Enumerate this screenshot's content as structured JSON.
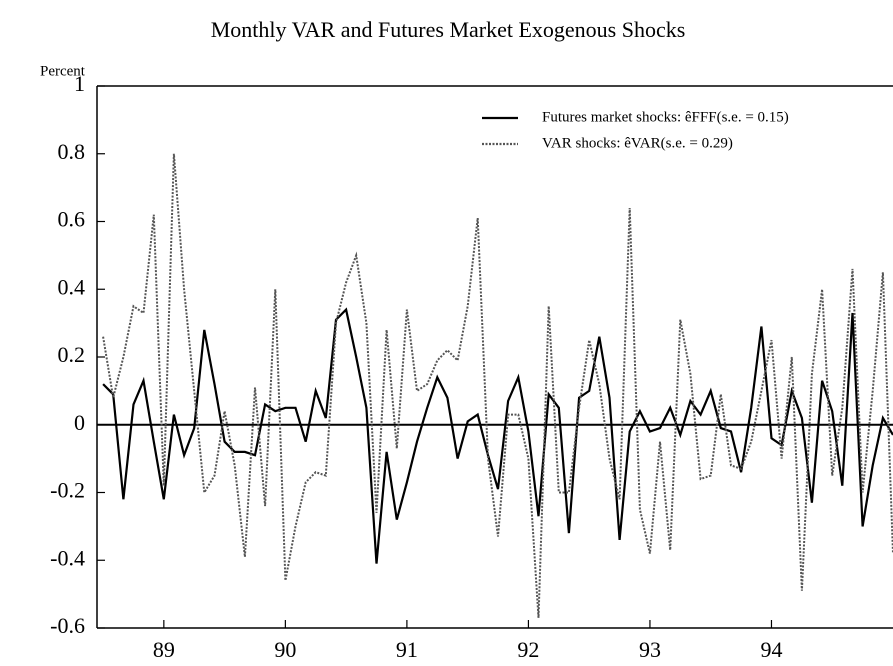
{
  "chart_data": {
    "type": "line",
    "title": "Monthly VAR and Futures Market Exogenous Shocks",
    "y_label": "Percent",
    "x": [
      1988.5,
      1988.583,
      1988.667,
      1988.75,
      1988.833,
      1988.917,
      1989,
      1989.083,
      1989.167,
      1989.25,
      1989.333,
      1989.417,
      1989.5,
      1989.583,
      1989.667,
      1989.75,
      1989.833,
      1989.917,
      1990,
      1990.083,
      1990.167,
      1990.25,
      1990.333,
      1990.417,
      1990.5,
      1990.583,
      1990.667,
      1990.75,
      1990.833,
      1990.917,
      1991,
      1991.083,
      1991.167,
      1991.25,
      1991.333,
      1991.417,
      1991.5,
      1991.583,
      1991.667,
      1991.75,
      1991.833,
      1991.917,
      1992,
      1992.083,
      1992.167,
      1992.25,
      1992.333,
      1992.417,
      1992.5,
      1992.583,
      1992.667,
      1992.75,
      1992.833,
      1992.917,
      1993,
      1993.083,
      1993.167,
      1993.25,
      1993.333,
      1993.417,
      1993.5,
      1993.583,
      1993.667,
      1993.75,
      1993.833,
      1993.917,
      1994,
      1994.083,
      1994.167,
      1994.25,
      1994.333,
      1994.417,
      1994.5,
      1994.583,
      1994.667,
      1994.75,
      1994.833,
      1994.917,
      1995
    ],
    "series": [
      {
        "name": "Futures market shocks: êFFF(s.e. = 0.15)",
        "color": "#000000",
        "line_style": "solid",
        "values": [
          0.12,
          0.09,
          -0.22,
          0.06,
          0.13,
          -0.05,
          -0.22,
          0.03,
          -0.09,
          -0.01,
          0.28,
          0.12,
          -0.05,
          -0.08,
          -0.08,
          -0.09,
          0.06,
          0.04,
          0.05,
          0.05,
          -0.05,
          0.1,
          0.02,
          0.31,
          0.34,
          0.2,
          0.05,
          -0.41,
          -0.08,
          -0.28,
          -0.17,
          -0.05,
          0.05,
          0.14,
          0.08,
          -0.1,
          0.01,
          0.03,
          -0.09,
          -0.19,
          0.07,
          0.14,
          -0.02,
          -0.27,
          0.09,
          0.05,
          -0.32,
          0.08,
          0.1,
          0.26,
          0.08,
          -0.34,
          -0.02,
          0.04,
          -0.02,
          -0.01,
          0.05,
          -0.03,
          0.07,
          0.03,
          0.1,
          -0.01,
          -0.02,
          -0.14,
          0.05,
          0.29,
          -0.04,
          -0.06,
          0.1,
          0.02,
          -0.23,
          0.13,
          0.04,
          -0.18,
          0.33,
          -0.3,
          -0.12,
          0.02,
          -0.03
        ]
      },
      {
        "name": "VAR shocks: êVAR(s.e. = 0.29)",
        "color": "#555555",
        "line_style": "dotted",
        "values": [
          0.26,
          0.08,
          0.2,
          0.35,
          0.33,
          0.62,
          -0.18,
          0.8,
          0.4,
          0.1,
          -0.2,
          -0.15,
          0.04,
          -0.12,
          -0.39,
          0.11,
          -0.24,
          0.4,
          -0.46,
          -0.3,
          -0.17,
          -0.14,
          -0.15,
          0.3,
          0.42,
          0.5,
          0.3,
          -0.26,
          0.28,
          -0.07,
          0.34,
          0.1,
          0.12,
          0.19,
          0.22,
          0.19,
          0.35,
          0.61,
          -0.1,
          -0.33,
          0.03,
          0.03,
          -0.1,
          -0.57,
          0.35,
          -0.2,
          -0.2,
          0.05,
          0.25,
          0.12,
          -0.1,
          -0.22,
          0.64,
          -0.25,
          -0.38,
          -0.05,
          -0.37,
          0.31,
          0.15,
          -0.16,
          -0.15,
          0.09,
          -0.12,
          -0.13,
          -0.05,
          0.1,
          0.25,
          -0.1,
          0.2,
          -0.49,
          0.15,
          0.4,
          -0.15,
          0.05,
          0.46,
          -0.2,
          0.1,
          0.45,
          -0.38
        ]
      }
    ],
    "xlim": [
      1988.45,
      1995.0
    ],
    "xticks": [
      {
        "value": 1989,
        "label": "89"
      },
      {
        "value": 1990,
        "label": "90"
      },
      {
        "value": 1991,
        "label": "91"
      },
      {
        "value": 1992,
        "label": "92"
      },
      {
        "value": 1993,
        "label": "93"
      },
      {
        "value": 1994,
        "label": "94"
      }
    ],
    "ylim": [
      -0.6,
      1
    ],
    "yticks": [
      1,
      0.8,
      0.6,
      0.4,
      0.2,
      0,
      -0.2,
      -0.4,
      -0.6
    ],
    "legend": "upper right",
    "grid": false
  }
}
